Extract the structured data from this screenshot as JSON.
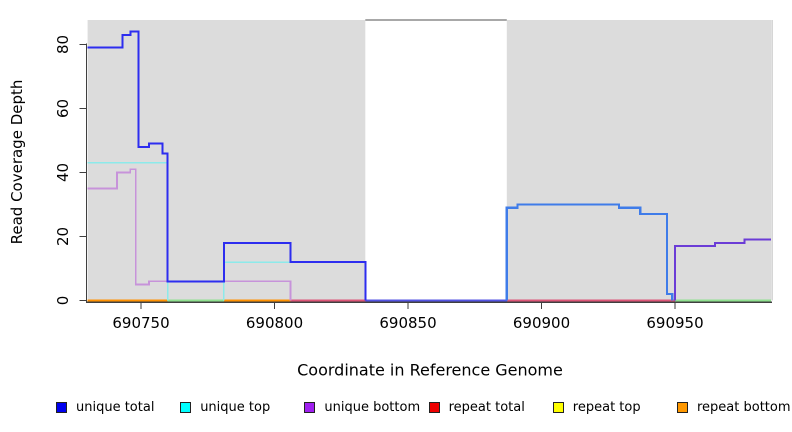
{
  "chart_data": {
    "type": "line",
    "subtype": "step-coverage-plot",
    "title": "",
    "xlabel": "Coordinate in Reference Genome",
    "ylabel": "Read Coverage Depth",
    "xlim": [
      690730,
      690986
    ],
    "ylim": [
      0,
      88
    ],
    "xtick_values": [
      690750,
      690800,
      690850,
      690900,
      690950
    ],
    "xtick_labels": [
      "690750",
      "690800",
      "690850",
      "690900",
      "690950"
    ],
    "ytick_values": [
      0,
      20,
      40,
      60,
      80
    ],
    "ytick_labels": [
      "0",
      "20",
      "40",
      "60",
      "80"
    ],
    "grid": "off",
    "legend_position": "bottom",
    "shaded_regions": [
      [
        690730,
        690834
      ],
      [
        690887,
        690986
      ]
    ],
    "shade_color": "#dcdcdc",
    "unshaded_gap": {
      "from": 690834,
      "to": 690887,
      "top_line_color": "#8c8c8c"
    },
    "series": [
      {
        "name": "unique total",
        "legend_color": "#0000ee",
        "segments": [
          {
            "color": "#2d2def",
            "width": 2,
            "points": [
              [
                690730,
                79
              ],
              [
                690743,
                83
              ],
              [
                690746,
                84
              ],
              [
                690749,
                48
              ],
              [
                690753,
                49
              ],
              [
                690758,
                46
              ],
              [
                690760,
                6
              ],
              [
                690781,
                18
              ],
              [
                690806,
                12
              ],
              [
                690834,
                0
              ]
            ],
            "end": 690834
          },
          {
            "color": "#3f7ce9",
            "width": 2.2,
            "points": [
              [
                690887,
                0
              ],
              [
                690887,
                29
              ],
              [
                690891,
                30
              ],
              [
                690929,
                29
              ],
              [
                690937,
                27
              ],
              [
                690947,
                2
              ],
              [
                690949,
                0
              ]
            ],
            "end": 690949
          }
        ]
      },
      {
        "name": "unique top",
        "legend_color": "#00ffff",
        "segments": [
          {
            "color": "#8ceaea",
            "width": 1.6,
            "points": [
              [
                690730,
                43
              ],
              [
                690760,
                0
              ]
            ],
            "end": 690760
          },
          {
            "color": "#8ceaea",
            "width": 1.6,
            "points": [
              [
                690781,
                0
              ],
              [
                690781,
                12
              ],
              [
                690834,
                0
              ]
            ],
            "end": 690834
          }
        ]
      },
      {
        "name": "unique bottom",
        "legend_color": "#a020f0",
        "segments": [
          {
            "color": "#c793da",
            "width": 1.6,
            "points": [
              [
                690730,
                35
              ],
              [
                690741,
                40
              ],
              [
                690746,
                41
              ],
              [
                690748,
                5
              ],
              [
                690753,
                6
              ],
              [
                690806,
                0
              ]
            ],
            "end": 690806
          },
          {
            "color": "#6b3cd6",
            "width": 2,
            "points": [
              [
                690950,
                0
              ],
              [
                690950,
                17
              ],
              [
                690965,
                18
              ],
              [
                690976,
                19
              ]
            ],
            "end": 690986
          }
        ]
      },
      {
        "name": "repeat total",
        "legend_color": "#ee0000",
        "all_zero": true,
        "value": 0,
        "range": [
          690730,
          690986
        ],
        "segments": []
      },
      {
        "name": "repeat top",
        "legend_color": "#ffff00",
        "all_zero": true,
        "value": 0,
        "range": [
          690730,
          690986
        ],
        "segments": []
      },
      {
        "name": "repeat bottom",
        "legend_color": "#ff9800",
        "all_zero": true,
        "value": 0,
        "range": [
          690730,
          690986
        ],
        "segments": []
      }
    ],
    "zero_line_segments": [
      {
        "from": 690730,
        "to": 690760,
        "color": "#ff9100"
      },
      {
        "from": 690760,
        "to": 690781,
        "color": "#8fe08f"
      },
      {
        "from": 690781,
        "to": 690806,
        "color": "#ff9100"
      },
      {
        "from": 690806,
        "to": 690834,
        "color": "#dd5577"
      },
      {
        "from": 690834,
        "to": 690887,
        "color": "#5353e3"
      },
      {
        "from": 690887,
        "to": 690950,
        "color": "#dd5577"
      },
      {
        "from": 690950,
        "to": 690986,
        "color": "#8fe08f"
      }
    ],
    "axis_color": "#3f3f3f",
    "tick_label_color": "#000000"
  }
}
